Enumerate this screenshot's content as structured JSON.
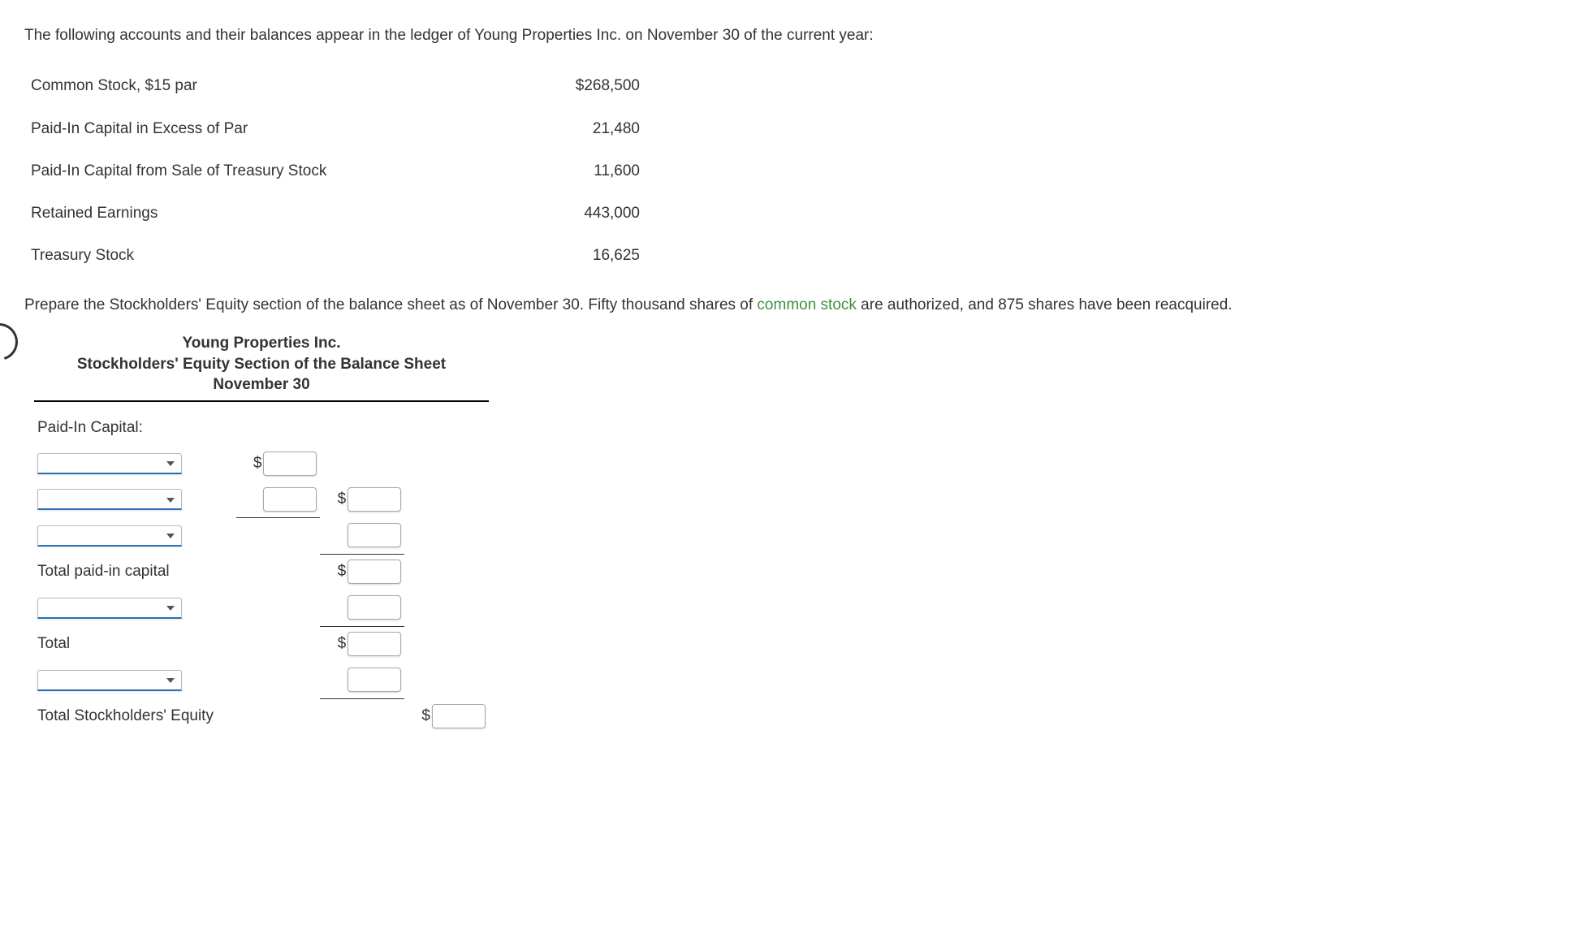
{
  "intro_text": "The following accounts and their balances appear in the ledger of Young Properties Inc. on November 30 of the current year:",
  "ledger": {
    "rows": [
      {
        "label": "Common Stock, $15 par",
        "value": "$268,500"
      },
      {
        "label": "Paid-In Capital in Excess of Par",
        "value": "21,480"
      },
      {
        "label": "Paid-In Capital from Sale of Treasury Stock",
        "value": "11,600"
      },
      {
        "label": "Retained Earnings",
        "value": "443,000"
      },
      {
        "label": "Treasury Stock",
        "value": "16,625"
      }
    ]
  },
  "instruction": {
    "pre": "Prepare the Stockholders' Equity section of the balance sheet as of November 30. Fifty thousand shares of ",
    "link": "common stock",
    "post": " are authorized, and 875 shares have been reacquired."
  },
  "sheet": {
    "title_line1": "Young Properties Inc.",
    "title_line2": "Stockholders' Equity Section of the Balance Sheet",
    "title_line3": "November 30",
    "labels": {
      "paid_in_capital": "Paid-In Capital:",
      "total_paid_in": "Total paid-in capital",
      "total": "Total",
      "total_stockholders": "Total Stockholders' Equity"
    },
    "dollar": "$"
  },
  "colors": {
    "text": "#333333",
    "link": "#3f8f3f",
    "select_underline": "#2a6fb5",
    "border": "#a8a8a8",
    "background": "#ffffff",
    "rule": "#000000"
  }
}
